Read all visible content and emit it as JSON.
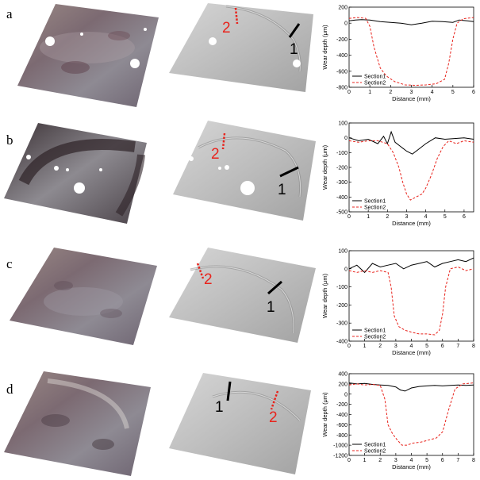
{
  "panels": [
    {
      "label": "a",
      "marker1": "1",
      "marker2": "2",
      "chart_data": {
        "type": "line",
        "xlabel": "Distance (mm)",
        "ylabel": "Wear depth (μm)",
        "xlim": [
          0,
          6
        ],
        "ylim": [
          -800,
          200
        ],
        "xticks": [
          0,
          1,
          2,
          3,
          4,
          5,
          6
        ],
        "yticks": [
          -800,
          -600,
          -400,
          -200,
          0,
          200
        ],
        "legend_position": "lower-left",
        "series": [
          {
            "name": "Section1",
            "color": "#000000",
            "dash": "solid",
            "points": [
              [
                0,
                30
              ],
              [
                0.3,
                40
              ],
              [
                0.6,
                45
              ],
              [
                1,
                40
              ],
              [
                1.5,
                20
              ],
              [
                2,
                10
              ],
              [
                2.5,
                0
              ],
              [
                3,
                -20
              ],
              [
                3.5,
                0
              ],
              [
                4,
                25
              ],
              [
                4.5,
                20
              ],
              [
                5,
                10
              ],
              [
                5.3,
                40
              ],
              [
                5.7,
                30
              ],
              [
                6,
                20
              ]
            ]
          },
          {
            "name": "Section2",
            "color": "#e8231c",
            "dash": "dashed",
            "points": [
              [
                0,
                60
              ],
              [
                0.4,
                70
              ],
              [
                0.8,
                60
              ],
              [
                1.0,
                -40
              ],
              [
                1.2,
                -300
              ],
              [
                1.5,
                -560
              ],
              [
                1.8,
                -660
              ],
              [
                2.2,
                -730
              ],
              [
                2.7,
                -770
              ],
              [
                3.2,
                -775
              ],
              [
                3.7,
                -770
              ],
              [
                4.2,
                -755
              ],
              [
                4.6,
                -700
              ],
              [
                4.8,
                -500
              ],
              [
                5.0,
                -200
              ],
              [
                5.2,
                0
              ],
              [
                5.5,
                55
              ],
              [
                6,
                70
              ]
            ]
          }
        ]
      }
    },
    {
      "label": "b",
      "marker1": "1",
      "marker2": "2",
      "chart_data": {
        "type": "line",
        "xlabel": "Distance (mm)",
        "ylabel": "Wear depth (μm)",
        "xlim": [
          0,
          6.5
        ],
        "ylim": [
          -500,
          100
        ],
        "xticks": [
          0,
          1,
          2,
          3,
          4,
          5,
          6
        ],
        "yticks": [
          -500,
          -400,
          -300,
          -200,
          -100,
          0,
          100
        ],
        "legend_position": "lower-left",
        "series": [
          {
            "name": "Section1",
            "color": "#000000",
            "dash": "solid",
            "points": [
              [
                0,
                0
              ],
              [
                0.5,
                -20
              ],
              [
                1,
                -10
              ],
              [
                1.5,
                -40
              ],
              [
                1.8,
                10
              ],
              [
                2.0,
                -40
              ],
              [
                2.2,
                40
              ],
              [
                2.4,
                -30
              ],
              [
                2.7,
                -60
              ],
              [
                3,
                -90
              ],
              [
                3.3,
                -110
              ],
              [
                3.6,
                -80
              ],
              [
                4,
                -40
              ],
              [
                4.5,
                0
              ],
              [
                5,
                -10
              ],
              [
                5.5,
                -5
              ],
              [
                6,
                0
              ],
              [
                6.5,
                -10
              ]
            ]
          },
          {
            "name": "Section2",
            "color": "#e8231c",
            "dash": "dashed",
            "points": [
              [
                0,
                -20
              ],
              [
                0.5,
                -30
              ],
              [
                1,
                -20
              ],
              [
                1.5,
                -20
              ],
              [
                2.0,
                -40
              ],
              [
                2.3,
                -100
              ],
              [
                2.6,
                -200
              ],
              [
                2.8,
                -300
              ],
              [
                3.0,
                -380
              ],
              [
                3.2,
                -420
              ],
              [
                3.5,
                -400
              ],
              [
                3.8,
                -380
              ],
              [
                4.0,
                -340
              ],
              [
                4.3,
                -250
              ],
              [
                4.6,
                -140
              ],
              [
                4.9,
                -60
              ],
              [
                5.2,
                -20
              ],
              [
                5.6,
                -40
              ],
              [
                6,
                -20
              ],
              [
                6.5,
                -30
              ]
            ]
          }
        ]
      }
    },
    {
      "label": "c",
      "marker1": "1",
      "marker2": "2",
      "chart_data": {
        "type": "line",
        "xlabel": "Distance (mm)",
        "ylabel": "Wear depth (μm)",
        "xlim": [
          0,
          8
        ],
        "ylim": [
          -400,
          100
        ],
        "xticks": [
          0,
          1,
          2,
          3,
          4,
          5,
          6,
          7,
          8
        ],
        "yticks": [
          -400,
          -300,
          -200,
          -100,
          0,
          100
        ],
        "legend_position": "lower-left",
        "series": [
          {
            "name": "Section1",
            "color": "#000000",
            "dash": "solid",
            "points": [
              [
                0,
                0
              ],
              [
                0.5,
                20
              ],
              [
                1,
                -20
              ],
              [
                1.5,
                30
              ],
              [
                2,
                10
              ],
              [
                2.5,
                20
              ],
              [
                3,
                30
              ],
              [
                3.5,
                0
              ],
              [
                4,
                20
              ],
              [
                4.5,
                30
              ],
              [
                5,
                40
              ],
              [
                5.5,
                10
              ],
              [
                6,
                30
              ],
              [
                6.5,
                40
              ],
              [
                7,
                50
              ],
              [
                7.5,
                40
              ],
              [
                8,
                60
              ]
            ]
          },
          {
            "name": "Section2",
            "color": "#e8231c",
            "dash": "dashed",
            "points": [
              [
                0,
                -10
              ],
              [
                0.5,
                -20
              ],
              [
                1,
                -10
              ],
              [
                1.5,
                -20
              ],
              [
                2,
                -10
              ],
              [
                2.5,
                -20
              ],
              [
                2.7,
                -100
              ],
              [
                2.9,
                -260
              ],
              [
                3.2,
                -320
              ],
              [
                3.6,
                -340
              ],
              [
                4,
                -350
              ],
              [
                4.5,
                -360
              ],
              [
                5,
                -360
              ],
              [
                5.5,
                -365
              ],
              [
                5.8,
                -340
              ],
              [
                6.0,
                -250
              ],
              [
                6.2,
                -100
              ],
              [
                6.5,
                0
              ],
              [
                7,
                10
              ],
              [
                7.5,
                -10
              ],
              [
                8,
                0
              ]
            ]
          }
        ]
      }
    },
    {
      "label": "d",
      "marker1": "1",
      "marker2": "2",
      "chart_data": {
        "type": "line",
        "xlabel": "Distance (mm)",
        "ylabel": "Wear depth (μm)",
        "xlim": [
          0,
          8
        ],
        "ylim": [
          -1200,
          400
        ],
        "xticks": [
          0,
          1,
          2,
          3,
          4,
          5,
          6,
          7,
          8
        ],
        "yticks": [
          -1200,
          -1000,
          -800,
          -600,
          -400,
          -200,
          0,
          200,
          400
        ],
        "legend_position": "lower-left",
        "series": [
          {
            "name": "Section1",
            "color": "#000000",
            "dash": "solid",
            "points": [
              [
                0,
                220
              ],
              [
                0.5,
                200
              ],
              [
                1,
                210
              ],
              [
                1.5,
                190
              ],
              [
                2,
                180
              ],
              [
                2.5,
                170
              ],
              [
                3,
                140
              ],
              [
                3.3,
                80
              ],
              [
                3.6,
                60
              ],
              [
                4,
                120
              ],
              [
                4.5,
                150
              ],
              [
                5,
                160
              ],
              [
                5.5,
                170
              ],
              [
                6,
                160
              ],
              [
                6.5,
                170
              ],
              [
                7,
                180
              ],
              [
                7.5,
                170
              ],
              [
                8,
                180
              ]
            ]
          },
          {
            "name": "Section2",
            "color": "#e8231c",
            "dash": "dashed",
            "points": [
              [
                0,
                180
              ],
              [
                0.5,
                200
              ],
              [
                1,
                180
              ],
              [
                1.5,
                190
              ],
              [
                2,
                170
              ],
              [
                2.3,
                -100
              ],
              [
                2.5,
                -600
              ],
              [
                2.8,
                -780
              ],
              [
                3.1,
                -900
              ],
              [
                3.4,
                -1000
              ],
              [
                3.7,
                -1000
              ],
              [
                4.1,
                -960
              ],
              [
                4.6,
                -940
              ],
              [
                5.1,
                -900
              ],
              [
                5.6,
                -860
              ],
              [
                6.0,
                -740
              ],
              [
                6.4,
                -300
              ],
              [
                6.8,
                100
              ],
              [
                7.3,
                200
              ],
              [
                8,
                220
              ]
            ]
          }
        ]
      }
    }
  ]
}
